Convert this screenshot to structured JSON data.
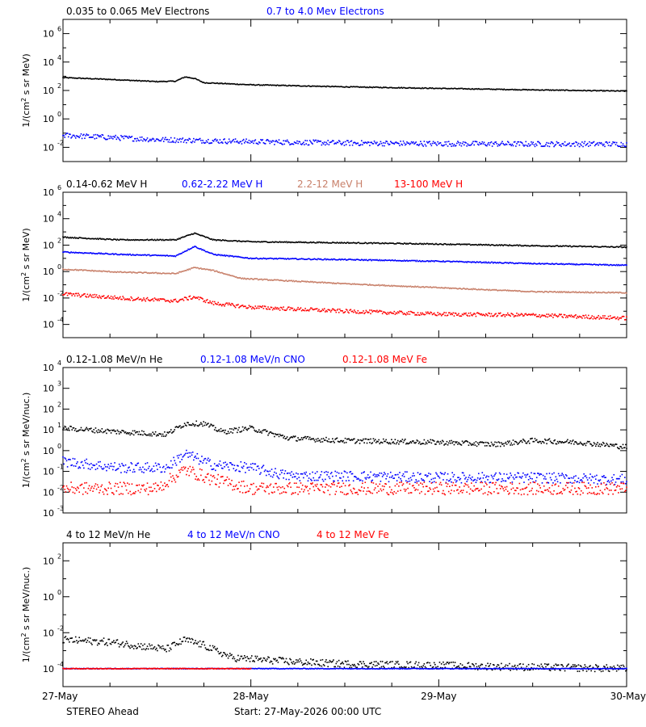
{
  "footer": {
    "spacecraft": "STEREO Ahead",
    "start": "Start: 27-May-2026 00:00 UTC"
  },
  "x_axis": {
    "ticks": [
      "27-May",
      "28-May",
      "29-May",
      "30-May"
    ],
    "range_days": [
      0,
      3
    ]
  },
  "chart_data": [
    {
      "type": "scatter",
      "yscale": "log",
      "ylabel_base": "1/(cm",
      "ylabel_sup": "2",
      "ylabel_rest": " s sr MeV)",
      "ylim_exp": [
        -3,
        7
      ],
      "y_tick_exponents": [
        -2,
        0,
        2,
        4,
        6
      ],
      "series": [
        {
          "name": "0.035 to 0.065 MeV Electrons",
          "color": "#000000",
          "x": [
            0,
            0.25,
            0.5,
            0.6,
            0.65,
            0.7,
            0.75,
            0.8,
            1.0,
            1.5,
            2.0,
            2.5,
            3.0
          ],
          "y": [
            800,
            600,
            420,
            450,
            900,
            700,
            350,
            330,
            250,
            180,
            140,
            110,
            90
          ],
          "noise": 0.03
        },
        {
          "name": "0.7 to 4.0 Mev Electrons",
          "color": "#0000ff",
          "x": [
            0,
            0.5,
            1.0,
            1.5,
            2.0,
            2.5,
            3.0
          ],
          "y": [
            0.07,
            0.035,
            0.025,
            0.02,
            0.018,
            0.017,
            0.017
          ],
          "noise": 0.18
        }
      ]
    },
    {
      "type": "scatter",
      "yscale": "log",
      "ylabel_base": "1/(cm",
      "ylabel_sup": "2",
      "ylabel_rest": " s sr MeV)",
      "ylim_exp": [
        -5,
        6
      ],
      "y_tick_exponents": [
        -4,
        -2,
        0,
        2,
        4,
        6
      ],
      "series": [
        {
          "name": "0.14-0.62 MeV H",
          "color": "#000000",
          "x": [
            0,
            0.3,
            0.6,
            0.7,
            0.8,
            1.0,
            1.5,
            2.0,
            2.5,
            3.0
          ],
          "y": [
            400,
            250,
            250,
            800,
            250,
            180,
            150,
            120,
            90,
            70
          ],
          "noise": 0.04
        },
        {
          "name": "0.62-2.22 MeV H",
          "color": "#0000ff",
          "x": [
            0,
            0.3,
            0.6,
            0.7,
            0.8,
            1.0,
            1.5,
            2.0,
            2.5,
            3.0
          ],
          "y": [
            30,
            20,
            15,
            80,
            20,
            10,
            8,
            6,
            4,
            3
          ],
          "noise": 0.04
        },
        {
          "name": "2.2-12 MeV H",
          "color": "#c8806a",
          "x": [
            0,
            0.3,
            0.6,
            0.7,
            0.8,
            0.95,
            1.5,
            2.0,
            2.5,
            3.0
          ],
          "y": [
            1.5,
            0.9,
            0.7,
            2.0,
            1.2,
            0.3,
            0.12,
            0.06,
            0.03,
            0.025
          ],
          "noise": 0.04
        },
        {
          "name": "13-100 MeV H",
          "color": "#ff0000",
          "x": [
            0,
            0.3,
            0.6,
            0.7,
            0.8,
            1.0,
            1.5,
            2.0,
            2.5,
            3.0
          ],
          "y": [
            0.02,
            0.01,
            0.006,
            0.012,
            0.004,
            0.002,
            0.001,
            0.0006,
            0.0005,
            0.0003
          ],
          "noise": 0.14
        }
      ]
    },
    {
      "type": "scatter",
      "yscale": "log",
      "ylabel_base": "1/(cm",
      "ylabel_sup": "2",
      "ylabel_rest": " s sr MeV/nuc.)",
      "ylim_exp": [
        -3,
        4
      ],
      "y_tick_exponents": [
        -3,
        -2,
        -1,
        0,
        1,
        2,
        3,
        4
      ],
      "series": [
        {
          "name": "0.12-1.08 MeV/n He",
          "color": "#000000",
          "x": [
            0,
            0.3,
            0.55,
            0.65,
            0.75,
            0.85,
            1.0,
            1.2,
            1.5,
            2.0,
            2.3,
            2.5,
            2.75,
            3.0
          ],
          "y": [
            12,
            8,
            6,
            20,
            20,
            8,
            12,
            4,
            3,
            2.5,
            2,
            3,
            2.5,
            1.5
          ],
          "noise": 0.12
        },
        {
          "name": "0.12-1.08 MeV/n CNO",
          "color": "#0000ff",
          "x": [
            0,
            0.3,
            0.55,
            0.65,
            0.8,
            1.0,
            1.2,
            1.5,
            2.0,
            2.5,
            3.0
          ],
          "y": [
            0.3,
            0.15,
            0.15,
            0.7,
            0.2,
            0.15,
            0.06,
            0.06,
            0.05,
            0.05,
            0.04
          ],
          "noise": 0.25
        },
        {
          "name": "0.12-1.08 MeV Fe",
          "color": "#ff0000",
          "x": [
            0,
            0.5,
            0.65,
            0.8,
            1.0,
            1.5,
            2.0,
            2.5,
            3.0
          ],
          "y": [
            0.015,
            0.015,
            0.12,
            0.04,
            0.015,
            0.015,
            0.015,
            0.015,
            0.015
          ],
          "noise": 0.3
        }
      ]
    },
    {
      "type": "scatter",
      "yscale": "log",
      "ylabel_base": "1/(cm",
      "ylabel_sup": "2",
      "ylabel_rest": " s sr MeV/nuc.)",
      "ylim_exp": [
        -5,
        3
      ],
      "y_tick_exponents": [
        -4,
        -2,
        0,
        2
      ],
      "series": [
        {
          "name": "4 to 12 MeV/n He",
          "color": "#000000",
          "x": [
            0,
            0.25,
            0.55,
            0.65,
            0.75,
            0.9,
            1.2,
            1.5,
            2.0,
            2.5,
            3.0
          ],
          "y": [
            0.004,
            0.003,
            0.0012,
            0.004,
            0.002,
            0.0004,
            0.00025,
            0.00018,
            0.00015,
            0.00012,
            0.0001
          ],
          "noise": 0.2
        },
        {
          "name": "4 to 12 MeV/n CNO",
          "color": "#0000ff",
          "x": [
            0,
            1.0,
            2.0,
            3.0
          ],
          "y": [
            0.0001,
            0.0001,
            0.0001,
            0.0001
          ],
          "noise": 0.02
        },
        {
          "name": "4 to 12 MeV Fe",
          "color": "#ff0000",
          "x": [
            0,
            0.4,
            0.8,
            1.0
          ],
          "y": [
            0.0001,
            0.0001,
            0.0001,
            0.0001
          ],
          "noise": 0.02
        }
      ]
    }
  ]
}
